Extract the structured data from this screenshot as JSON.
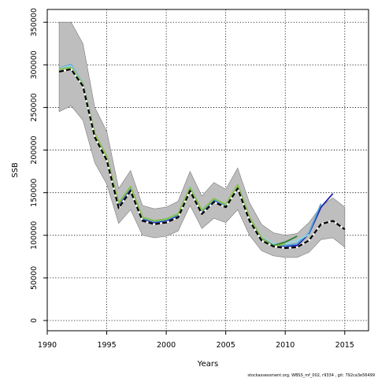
{
  "chart_data": {
    "type": "line",
    "title": "",
    "xlabel": "Years",
    "ylabel": "SSB",
    "xlim": [
      1990,
      2017
    ],
    "ylim": [
      -12000,
      365000
    ],
    "grid": true,
    "x_ticks": [
      1990,
      1995,
      2000,
      2005,
      2010,
      2015
    ],
    "y_ticks": [
      0,
      50000,
      100000,
      150000,
      200000,
      250000,
      300000,
      350000
    ],
    "confidence_band": {
      "x": [
        1991,
        1992,
        1993,
        1994,
        1995,
        1996,
        1997,
        1998,
        1999,
        2000,
        2001,
        2002,
        2003,
        2004,
        2005,
        2006,
        2007,
        2008,
        2009,
        2010,
        2011,
        2012,
        2013,
        2014,
        2015
      ],
      "lower": [
        245000,
        252000,
        235000,
        185000,
        160000,
        114000,
        130000,
        100000,
        97000,
        99000,
        105000,
        135000,
        108000,
        120000,
        115000,
        130000,
        100000,
        82000,
        76000,
        74000,
        74000,
        80000,
        95000,
        97000,
        86000
      ],
      "upper": [
        350000,
        350000,
        325000,
        250000,
        222000,
        155000,
        176000,
        135000,
        131000,
        133000,
        140000,
        175000,
        146000,
        162000,
        154000,
        179000,
        138000,
        113000,
        103000,
        100000,
        102000,
        115000,
        134000,
        144000,
        133000
      ],
      "color": "#bebebe"
    },
    "series": [
      {
        "color": "#000000",
        "dashed": true,
        "x": [
          1991,
          1992,
          1993,
          1994,
          1995,
          1996,
          1997,
          1998,
          1999,
          2000,
          2001,
          2002,
          2003,
          2004,
          2005,
          2006,
          2007,
          2008,
          2009,
          2010,
          2011,
          2012,
          2013,
          2014,
          2015
        ],
        "values": [
          292000,
          295000,
          275000,
          215000,
          188000,
          132000,
          152000,
          117000,
          113000,
          115000,
          121000,
          152000,
          125000,
          139000,
          133000,
          155000,
          117000,
          94000,
          87000,
          85000,
          86000,
          94000,
          113000,
          117000,
          107000
        ]
      },
      {
        "color": "#1f1fa0",
        "x": [
          1991,
          1992,
          1993,
          1994,
          1995,
          1996,
          1997,
          1998,
          1999,
          2000,
          2001,
          2002,
          2003,
          2004,
          2005,
          2006,
          2007,
          2008,
          2009,
          2010,
          2011,
          2012,
          2013,
          2014
        ],
        "values": [
          296000,
          300000,
          278000,
          218000,
          190000,
          136000,
          155000,
          119000,
          115000,
          117000,
          123000,
          155000,
          127000,
          141000,
          135000,
          158000,
          120000,
          96000,
          88000,
          87000,
          88000,
          102000,
          133000,
          149000
        ]
      },
      {
        "color": "#4da6e0",
        "x": [
          1991,
          1992,
          1993,
          1994,
          1995,
          1996,
          1997,
          1998,
          1999,
          2000,
          2001,
          2002,
          2003,
          2004,
          2005,
          2006,
          2007,
          2008,
          2009,
          2010,
          2011,
          2012,
          2013
        ],
        "values": [
          296000,
          300000,
          278000,
          218000,
          191000,
          137000,
          156000,
          120000,
          116000,
          118000,
          124000,
          156000,
          128000,
          142000,
          135000,
          157000,
          120000,
          97000,
          89000,
          88000,
          90000,
          103000,
          137000
        ]
      },
      {
        "color": "#8fd8e6",
        "x": [
          1991,
          1992,
          1993,
          1994,
          1995,
          1996,
          1997,
          1998,
          1999,
          2000,
          2001,
          2002,
          2003,
          2004,
          2005,
          2006,
          2007,
          2008,
          2009,
          2010,
          2011,
          2012
        ],
        "values": [
          296000,
          299000,
          278000,
          219000,
          192000,
          138000,
          157000,
          121000,
          117000,
          119000,
          125000,
          157000,
          129000,
          143000,
          136000,
          158000,
          121000,
          98000,
          90000,
          90000,
          94000,
          101000
        ]
      },
      {
        "color": "#2e7d32",
        "x": [
          1991,
          1992,
          1993,
          1994,
          1995,
          1996,
          1997,
          1998,
          1999,
          2000,
          2001,
          2002,
          2003,
          2004,
          2005,
          2006,
          2007,
          2008,
          2009,
          2010,
          2011
        ],
        "values": [
          295000,
          297000,
          277000,
          219000,
          192000,
          138000,
          157000,
          121000,
          117000,
          119000,
          125000,
          156000,
          129000,
          143000,
          136000,
          159000,
          121000,
          97000,
          88000,
          92000,
          99000
        ]
      },
      {
        "color": "#8bc34a",
        "x": [
          1991,
          1992,
          1993,
          1994,
          1995,
          1996,
          1997,
          1998,
          1999,
          2000,
          2001,
          2002,
          2003,
          2004,
          2005,
          2006,
          2007,
          2008,
          2009,
          2010
        ],
        "values": [
          295000,
          297000,
          277000,
          219000,
          192000,
          138000,
          157000,
          121000,
          117000,
          119000,
          125000,
          156000,
          129000,
          143000,
          136000,
          159000,
          121000,
          97000,
          87000,
          90000
        ]
      }
    ]
  },
  "footer": "stockassessment.org, WBSS_mf_002, r9334 , git: 792ca3e56499"
}
